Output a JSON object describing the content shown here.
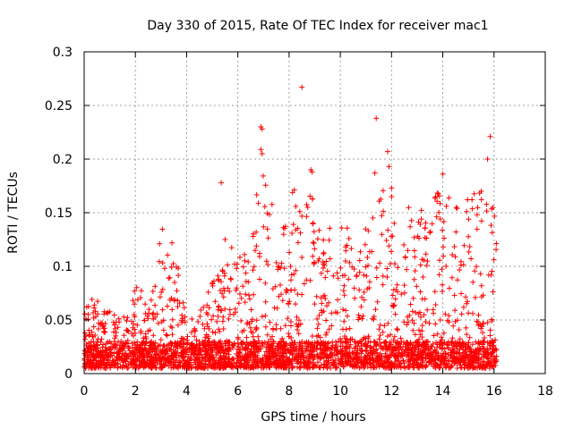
{
  "chart_data": {
    "type": "scatter",
    "title": "Day 330 of 2015, Rate Of TEC Index for receiver mac1",
    "xlabel": "GPS time / hours",
    "ylabel": "ROTI / TECUs",
    "xlim": [
      0,
      18
    ],
    "ylim": [
      0,
      0.3
    ],
    "x_ticks": [
      0,
      2,
      4,
      6,
      8,
      10,
      12,
      14,
      16,
      18
    ],
    "y_ticks": [
      0,
      0.05,
      0.1,
      0.15,
      0.2,
      0.25,
      0.3
    ],
    "x_tick_labels": [
      "0",
      "2",
      "4",
      "6",
      "8",
      "10",
      "12",
      "14",
      "16",
      "18"
    ],
    "y_tick_labels": [
      "0",
      "0.05",
      "0.1",
      "0.15",
      "0.2",
      "0.25",
      "0.3"
    ],
    "grid": true,
    "marker": "+",
    "color": "#ff0000",
    "series": [
      {
        "name": "ROTI",
        "data_extent_hours": [
          0,
          16.1
        ],
        "baseline_band": [
          0.005,
          0.03
        ],
        "envelope": [
          [
            0,
            0.07
          ],
          [
            0.5,
            0.07
          ],
          [
            1,
            0.06
          ],
          [
            1.5,
            0.05
          ],
          [
            2,
            0.085
          ],
          [
            2.5,
            0.075
          ],
          [
            3,
            0.14
          ],
          [
            3.5,
            0.13
          ],
          [
            4,
            0.05
          ],
          [
            4.5,
            0.06
          ],
          [
            5,
            0.09
          ],
          [
            5.5,
            0.1
          ],
          [
            6,
            0.14
          ],
          [
            6.5,
            0.13
          ],
          [
            7,
            0.21
          ],
          [
            7.5,
            0.14
          ],
          [
            8,
            0.17
          ],
          [
            8.5,
            0.19
          ],
          [
            9,
            0.16
          ],
          [
            9.5,
            0.13
          ],
          [
            10,
            0.165
          ],
          [
            10.5,
            0.12
          ],
          [
            11,
            0.15
          ],
          [
            11.5,
            0.18
          ],
          [
            12,
            0.17
          ],
          [
            12.5,
            0.16
          ],
          [
            13,
            0.165
          ],
          [
            13.5,
            0.16
          ],
          [
            14,
            0.18
          ],
          [
            14.5,
            0.16
          ],
          [
            15,
            0.17
          ],
          [
            15.5,
            0.17
          ],
          [
            16,
            0.16
          ]
        ],
        "outliers": [
          {
            "x": 5.35,
            "y": 0.178
          },
          {
            "x": 5.5,
            "y": 0.125
          },
          {
            "x": 6.9,
            "y": 0.23
          },
          {
            "x": 6.95,
            "y": 0.228
          },
          {
            "x": 6.9,
            "y": 0.209
          },
          {
            "x": 6.95,
            "y": 0.205
          },
          {
            "x": 8.5,
            "y": 0.267
          },
          {
            "x": 8.85,
            "y": 0.19
          },
          {
            "x": 8.9,
            "y": 0.188
          },
          {
            "x": 11.4,
            "y": 0.238
          },
          {
            "x": 11.35,
            "y": 0.187
          },
          {
            "x": 11.85,
            "y": 0.207
          },
          {
            "x": 11.9,
            "y": 0.193
          },
          {
            "x": 15.75,
            "y": 0.2
          },
          {
            "x": 15.85,
            "y": 0.221
          },
          {
            "x": 14.0,
            "y": 0.186
          },
          {
            "x": 15.5,
            "y": 0.17
          },
          {
            "x": 12.0,
            "y": 0.173
          }
        ]
      }
    ]
  }
}
